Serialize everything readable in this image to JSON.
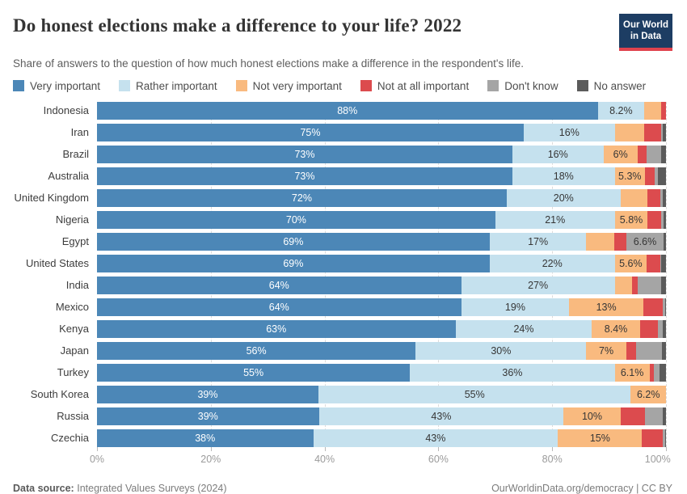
{
  "header": {
    "title": "Do honest elections make a difference to your life? 2022",
    "subtitle": "Share of answers to the question of how much honest elections make a difference in the respondent's life.",
    "logo": {
      "line1": "Our World",
      "line2": "in Data"
    }
  },
  "footer": {
    "datasource_label": "Data source:",
    "datasource_value": "Integrated Values Surveys (2024)",
    "credit": "OurWorldinData.org/democracy | CC BY"
  },
  "chart_data": {
    "type": "bar",
    "stacked": true,
    "horizontal": true,
    "title": "Do honest elections make a difference to your life? 2022",
    "categories": [
      "Very important",
      "Rather important",
      "Not very important",
      "Not at all important",
      "Don't know",
      "No answer"
    ],
    "palette": [
      "#4C87B7",
      "#C5E1EE",
      "#F9BA7F",
      "#DC4B4E",
      "#A5A5A5",
      "#5B5B5B"
    ],
    "xticks": [
      "0%",
      "20%",
      "40%",
      "60%",
      "80%",
      "100%"
    ],
    "xlim": [
      0,
      100
    ],
    "grid": true,
    "legend_position": "top",
    "rows": [
      {
        "country": "Indonesia",
        "values": [
          88,
          8.2,
          2.9,
          0.9,
          0,
          0
        ],
        "labels": [
          "88%",
          "8.2%",
          "",
          "",
          "",
          ""
        ]
      },
      {
        "country": "Iran",
        "values": [
          75,
          16,
          5.1,
          3.0,
          0.3,
          0.6
        ],
        "labels": [
          "75%",
          "16%",
          "",
          "",
          "",
          ""
        ]
      },
      {
        "country": "Brazil",
        "values": [
          73,
          16,
          6.0,
          1.6,
          2.6,
          0.8
        ],
        "labels": [
          "73%",
          "16%",
          "6%",
          "",
          "",
          ""
        ]
      },
      {
        "country": "Australia",
        "values": [
          73,
          18,
          5.3,
          1.7,
          0.6,
          1.4
        ],
        "labels": [
          "73%",
          "18%",
          "5.3%",
          "",
          "",
          ""
        ]
      },
      {
        "country": "United Kingdom",
        "values": [
          72,
          20,
          4.8,
          2.2,
          0.5,
          0.5
        ],
        "labels": [
          "72%",
          "20%",
          "",
          "",
          "",
          ""
        ]
      },
      {
        "country": "Nigeria",
        "values": [
          70,
          21,
          5.8,
          2.4,
          0.4,
          0.4
        ],
        "labels": [
          "70%",
          "21%",
          "5.8%",
          "",
          "",
          ""
        ]
      },
      {
        "country": "Egypt",
        "values": [
          69,
          17,
          4.9,
          2.1,
          6.6,
          0.4
        ],
        "labels": [
          "69%",
          "17%",
          "",
          "",
          "6.6%",
          ""
        ]
      },
      {
        "country": "United States",
        "values": [
          69,
          22,
          5.6,
          2.4,
          0.2,
          0.8
        ],
        "labels": [
          "69%",
          "22%",
          "5.6%",
          "",
          "",
          ""
        ]
      },
      {
        "country": "India",
        "values": [
          64,
          27,
          3.0,
          1.0,
          4.2,
          0.8
        ],
        "labels": [
          "64%",
          "27%",
          "",
          "",
          "",
          ""
        ]
      },
      {
        "country": "Mexico",
        "values": [
          64,
          19,
          13,
          3.4,
          0.4,
          0.2
        ],
        "labels": [
          "64%",
          "19%",
          "13%",
          "",
          "",
          ""
        ]
      },
      {
        "country": "Kenya",
        "values": [
          63,
          24,
          8.4,
          3.2,
          0.8,
          0.6
        ],
        "labels": [
          "63%",
          "24%",
          "8.4%",
          "",
          "",
          ""
        ]
      },
      {
        "country": "Japan",
        "values": [
          56,
          30,
          7.0,
          1.8,
          4.5,
          0.7
        ],
        "labels": [
          "56%",
          "30%",
          "7%",
          "",
          "",
          ""
        ]
      },
      {
        "country": "Turkey",
        "values": [
          55,
          36,
          6.1,
          0.8,
          1.0,
          1.1
        ],
        "labels": [
          "55%",
          "36%",
          "6.1%",
          "",
          "",
          ""
        ]
      },
      {
        "country": "South Korea",
        "values": [
          39,
          55,
          6.2,
          0,
          0,
          0
        ],
        "labels": [
          "39%",
          "55%",
          "6.2%",
          "",
          "",
          ""
        ]
      },
      {
        "country": "Russia",
        "values": [
          39,
          43,
          10,
          4.3,
          3.1,
          0.6
        ],
        "labels": [
          "39%",
          "43%",
          "10%",
          "",
          "",
          ""
        ]
      },
      {
        "country": "Czechia",
        "values": [
          38,
          43,
          14.8,
          3.7,
          0.3,
          0.2
        ],
        "labels": [
          "38%",
          "43%",
          "15%",
          "",
          "",
          ""
        ]
      }
    ]
  }
}
